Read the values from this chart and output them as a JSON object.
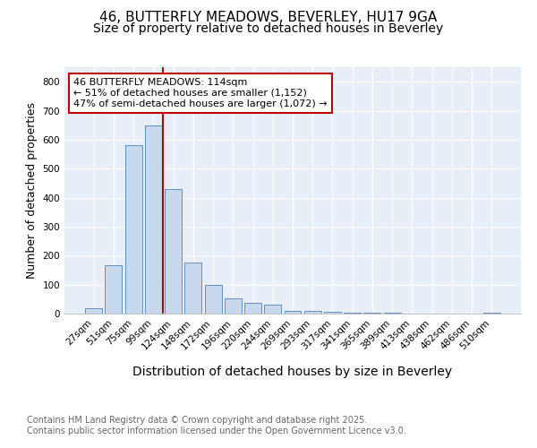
{
  "title1": "46, BUTTERFLY MEADOWS, BEVERLEY, HU17 9GA",
  "title2": "Size of property relative to detached houses in Beverley",
  "xlabel": "Distribution of detached houses by size in Beverley",
  "ylabel": "Number of detached properties",
  "categories": [
    "27sqm",
    "51sqm",
    "75sqm",
    "99sqm",
    "124sqm",
    "148sqm",
    "172sqm",
    "196sqm",
    "220sqm",
    "244sqm",
    "269sqm",
    "293sqm",
    "317sqm",
    "341sqm",
    "365sqm",
    "389sqm",
    "413sqm",
    "438sqm",
    "462sqm",
    "486sqm",
    "510sqm"
  ],
  "values": [
    18,
    168,
    580,
    648,
    430,
    175,
    100,
    52,
    38,
    30,
    10,
    8,
    5,
    4,
    3,
    2,
    1,
    1,
    0,
    0,
    2
  ],
  "bar_color": "#c8d8ec",
  "bar_edge_color": "#6090c0",
  "figure_background": "#ffffff",
  "plot_background": "#e8eef8",
  "grid_color": "#ffffff",
  "red_line_color": "#bb0000",
  "annotation_text": "46 BUTTERFLY MEADOWS: 114sqm\n← 51% of detached houses are smaller (1,152)\n47% of semi-detached houses are larger (1,072) →",
  "annotation_box_facecolor": "#ffffff",
  "annotation_box_edgecolor": "#bb0000",
  "ylim": [
    0,
    850
  ],
  "yticks": [
    0,
    100,
    200,
    300,
    400,
    500,
    600,
    700,
    800
  ],
  "footnote1": "Contains HM Land Registry data © Crown copyright and database right 2025.",
  "footnote2": "Contains public sector information licensed under the Open Government Licence v3.0.",
  "title1_fontsize": 11,
  "title2_fontsize": 10,
  "xlabel_fontsize": 10,
  "ylabel_fontsize": 9,
  "tick_fontsize": 7.5,
  "annotation_fontsize": 8,
  "footnote_fontsize": 7
}
